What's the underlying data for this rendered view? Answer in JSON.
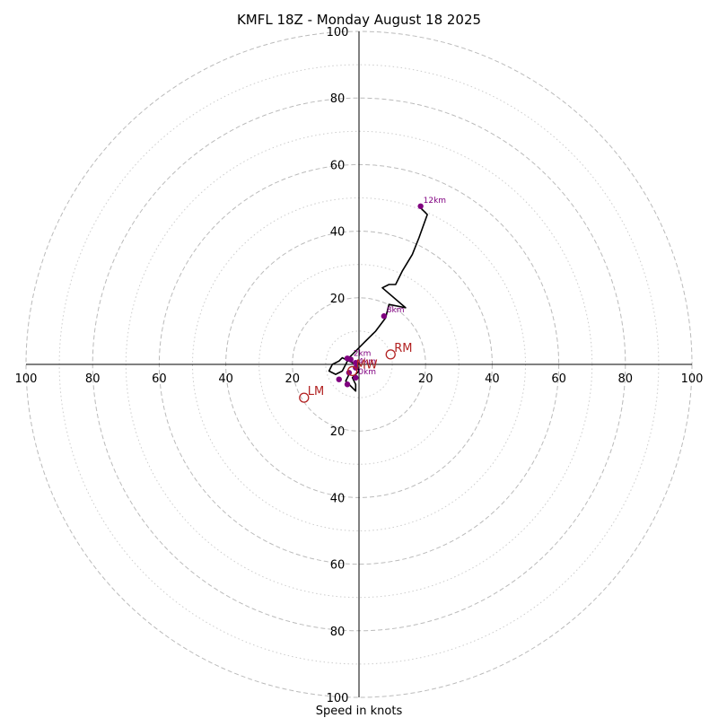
{
  "chart_data": {
    "type": "hodograph",
    "title": "KMFL 18Z - Monday August 18 2025",
    "xlabel": "Speed in knots",
    "range": [
      -100,
      100
    ],
    "ring_major": [
      20,
      40,
      60,
      80,
      100
    ],
    "ring_minor": [
      10,
      30,
      50,
      70,
      90
    ],
    "ticks": {
      "right": [
        "20",
        "40",
        "60",
        "80",
        "100"
      ],
      "left": [
        "20",
        "40",
        "60",
        "80",
        "100"
      ],
      "top": [
        "20",
        "40",
        "60",
        "80",
        "100"
      ],
      "bottom": [
        "20",
        "40",
        "60",
        "80",
        "100"
      ]
    },
    "trace": [
      [
        -3,
        -3
      ],
      [
        -4,
        -5
      ],
      [
        -2,
        -7
      ],
      [
        -1,
        -8
      ],
      [
        -1,
        -6
      ],
      [
        -2,
        -4
      ],
      [
        0,
        -2
      ],
      [
        -1,
        0
      ],
      [
        -3,
        1
      ],
      [
        -5,
        2
      ],
      [
        -6,
        1
      ],
      [
        -8,
        0
      ],
      [
        -9,
        -2
      ],
      [
        -7,
        -3
      ],
      [
        -5,
        -2
      ],
      [
        -4,
        0
      ],
      [
        -3,
        2
      ],
      [
        -2,
        3
      ],
      [
        -1,
        4
      ],
      [
        0,
        5
      ],
      [
        2,
        7
      ],
      [
        5,
        10
      ],
      [
        8,
        14
      ],
      [
        9,
        18
      ],
      [
        14,
        17
      ],
      [
        7,
        23
      ],
      [
        9,
        24
      ],
      [
        11,
        24
      ],
      [
        13,
        28
      ],
      [
        16,
        33
      ],
      [
        18,
        38
      ],
      [
        20.5,
        45
      ],
      [
        18.5,
        47
      ]
    ],
    "height_points": [
      {
        "label": "",
        "u": -3.5,
        "v": 1.8,
        "color": "#800080"
      },
      {
        "label": "",
        "u": -1,
        "v": 0.5,
        "color": "#800080"
      },
      {
        "label": "",
        "u": -6,
        "v": -4.5,
        "color": "#800080"
      },
      {
        "label": "",
        "u": -3.5,
        "v": -6,
        "color": "#800080"
      },
      {
        "label": "",
        "u": -3,
        "v": -2.5,
        "color": "#800080"
      },
      {
        "label": "2km",
        "u": -2.5,
        "v": 1.5,
        "color": "#800080"
      },
      {
        "label": "4km",
        "u": -1,
        "v": -1,
        "color": "#800080"
      },
      {
        "label": "0km",
        "u": -1,
        "v": -4,
        "color": "#800080"
      },
      {
        "label": "8km",
        "u": 7.5,
        "v": 14.5,
        "color": "#800080"
      },
      {
        "label": "12km",
        "u": 18.5,
        "v": 47.5,
        "color": "#800080"
      }
    ],
    "motions": [
      {
        "label": "RM",
        "u": 9.5,
        "v": 3,
        "color": "#b22222"
      },
      {
        "label": "LM",
        "u": -16.5,
        "v": -10,
        "color": "#b22222"
      },
      {
        "label": "MW",
        "u": -2,
        "v": -2,
        "color": "#b22222"
      }
    ]
  }
}
